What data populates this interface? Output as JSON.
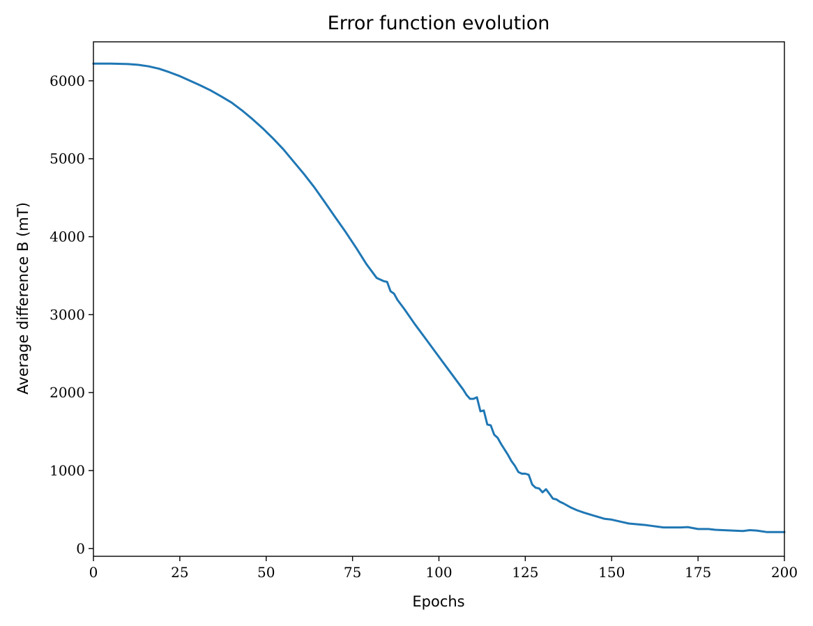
{
  "chart_data": {
    "type": "line",
    "title": "Error function evolution",
    "xlabel": "Epochs",
    "ylabel": "Average difference B (mT)",
    "xlim": [
      0,
      200
    ],
    "ylim": [
      -100,
      6500
    ],
    "xticks": [
      0,
      25,
      50,
      75,
      100,
      125,
      150,
      175,
      200
    ],
    "yticks": [
      0,
      1000,
      2000,
      3000,
      4000,
      5000,
      6000
    ],
    "grid": false,
    "line_color": "#1f77b4",
    "series": [
      {
        "x": [
          0,
          5,
          10,
          13,
          16,
          19,
          22,
          25,
          28,
          31,
          34,
          37,
          40,
          43,
          46,
          49,
          52,
          55,
          58,
          61,
          64,
          67,
          70,
          73,
          76,
          79,
          82,
          84,
          85,
          86,
          87,
          88,
          90,
          93,
          96,
          99,
          102,
          105,
          107,
          108,
          109,
          110,
          111,
          112,
          113,
          114,
          115,
          116,
          117,
          118,
          120,
          121,
          122,
          123,
          124,
          125,
          126,
          127,
          128,
          129,
          130,
          131,
          132,
          133,
          134,
          135,
          136,
          138,
          140,
          142,
          145,
          148,
          150,
          152,
          155,
          160,
          165,
          170,
          172,
          175,
          178,
          180,
          185,
          188,
          190,
          192,
          195,
          200
        ],
        "y": [
          6220,
          6220,
          6215,
          6205,
          6185,
          6155,
          6110,
          6060,
          6000,
          5940,
          5875,
          5800,
          5720,
          5620,
          5510,
          5390,
          5260,
          5120,
          4960,
          4800,
          4630,
          4440,
          4250,
          4060,
          3860,
          3650,
          3470,
          3430,
          3420,
          3300,
          3270,
          3190,
          3070,
          2880,
          2700,
          2520,
          2340,
          2160,
          2040,
          1970,
          1920,
          1920,
          1940,
          1760,
          1770,
          1590,
          1580,
          1460,
          1420,
          1340,
          1200,
          1120,
          1060,
          980,
          960,
          960,
          945,
          820,
          780,
          770,
          720,
          760,
          700,
          640,
          630,
          600,
          580,
          530,
          490,
          460,
          420,
          380,
          370,
          350,
          320,
          300,
          270,
          270,
          275,
          250,
          250,
          240,
          230,
          225,
          235,
          230,
          210,
          210
        ]
      }
    ]
  }
}
